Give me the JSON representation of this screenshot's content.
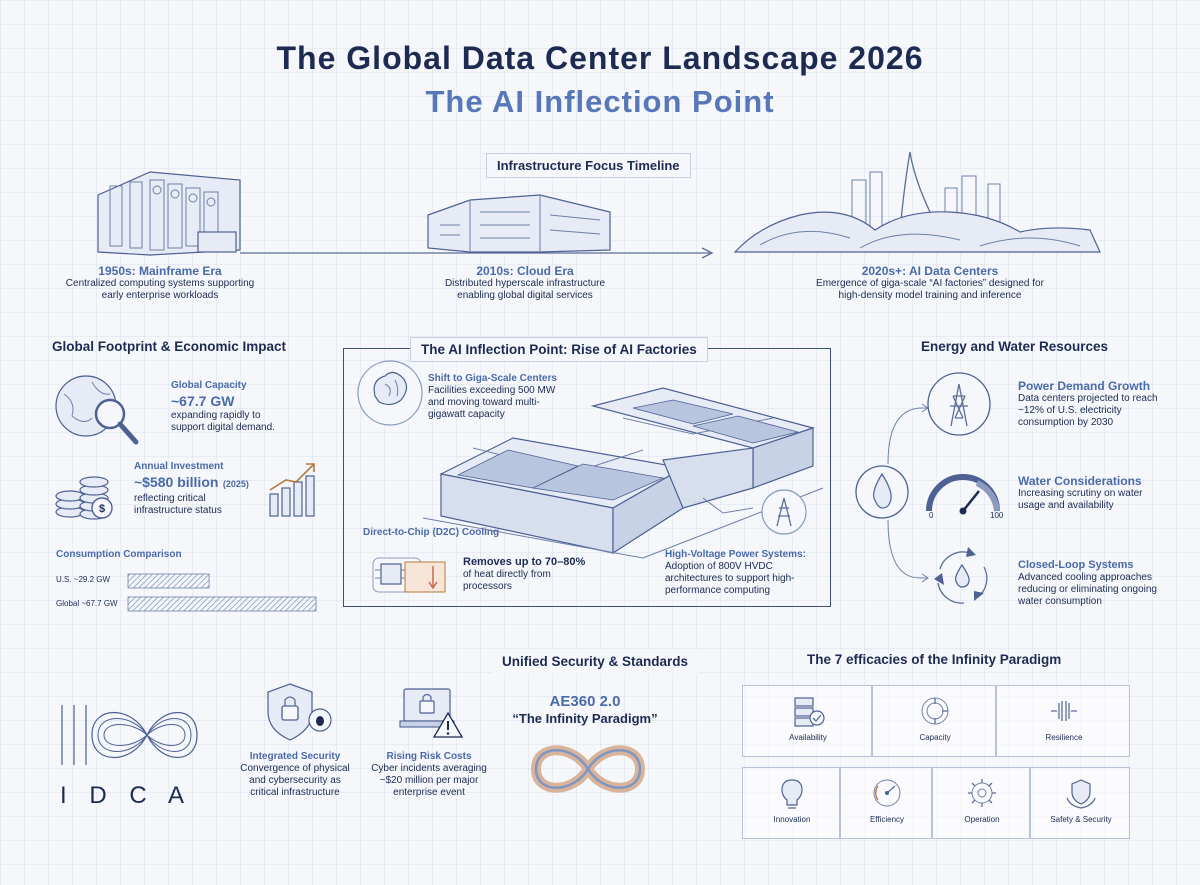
{
  "header": {
    "title": "The Global Data Center Landscape 2026",
    "subtitle": "The AI Inflection Point"
  },
  "timeline": {
    "title": "Infrastructure Focus Timeline",
    "eras": [
      {
        "title": "1950s: Mainframe Era",
        "desc1": "Centralized computing systems supporting",
        "desc2": "early enterprise workloads"
      },
      {
        "title": "2010s: Cloud Era",
        "desc1": "Distributed hyperscale infrastructure",
        "desc2": "enabling global digital services"
      },
      {
        "title": "2020s+: AI Data Centers",
        "desc1": "Emergence of giga-scale “AI factories” designed for",
        "desc2": "high-density model training and inference"
      }
    ]
  },
  "footprint": {
    "title": "Global Footprint & Economic Impact",
    "capacity": {
      "label": "Global Capacity",
      "value": "~67.7 GW",
      "desc1": "expanding rapidly to",
      "desc2": "support digital demand."
    },
    "investment": {
      "label": "Annual Investment",
      "value": "~$580 billion",
      "year": "(2025)",
      "desc1": "reflecting critical",
      "desc2": "infrastructure status"
    },
    "consumption": {
      "title": "Consumption Comparison",
      "bars": [
        {
          "label": "U.S. ~29.2 GW",
          "value": 29.2
        },
        {
          "label": "Global ~67.7 GW",
          "value": 67.7
        }
      ]
    }
  },
  "ai_factories": {
    "title": "The AI Inflection Point: Rise of AI Factories",
    "giga": {
      "title": "Shift to Giga-Scale Centers",
      "l1": "Facilities exceeding 500 MW",
      "l2": "and moving toward multi-",
      "l3": "gigawatt capacity"
    },
    "d2c": {
      "title": "Direct-to-Chip (D2C) Cooling",
      "l1": "Removes up to 70–80%",
      "l2": "of heat directly from",
      "l3": "processors"
    },
    "hv": {
      "title": "High-Voltage Power Systems:",
      "l1": "Adoption of 800V HVDC",
      "l2": "architectures to support high-",
      "l3": "performance computing"
    }
  },
  "energy": {
    "title": "Energy and Water Resources",
    "power": {
      "title": "Power Demand Growth",
      "l1": "Data centers projected to reach",
      "l2": "~12% of U.S. electricity",
      "l3": "consumption by 2030"
    },
    "water": {
      "title": "Water Considerations",
      "l1": "Increasing scrutiny on water",
      "l2": "usage and availability",
      "gauge_min": "0",
      "gauge_max": "100"
    },
    "loop": {
      "title": "Closed-Loop Systems",
      "l1": "Advanced cooling approaches",
      "l2": "reducing or eliminating ongoing",
      "l3": "water consumption"
    }
  },
  "security": {
    "title": "Unified Security & Standards",
    "integrated": {
      "title": "Integrated Security",
      "l1": "Convergence of physical",
      "l2": "and cybersecurity as",
      "l3": "critical infrastructure"
    },
    "risk": {
      "title": "Rising Risk Costs",
      "l1": "Cyber incidents averaging",
      "l2": "~$20 million per major",
      "l3": "enterprise event"
    },
    "ae360": {
      "name": "AE360 2.0",
      "tagline": "“The Infinity Paradigm”"
    }
  },
  "logo": {
    "text": "I D C A"
  },
  "efficacies": {
    "title": "The 7 efficacies of the Infinity Paradigm",
    "items": [
      "Availability",
      "Capacity",
      "Resilience",
      "Innovation",
      "Efficiency",
      "Operation",
      "Safety & Security"
    ]
  },
  "colors": {
    "navy": "#1d2b52",
    "accent_blue": "#4a6aa8",
    "background": "#f5f7fb"
  }
}
